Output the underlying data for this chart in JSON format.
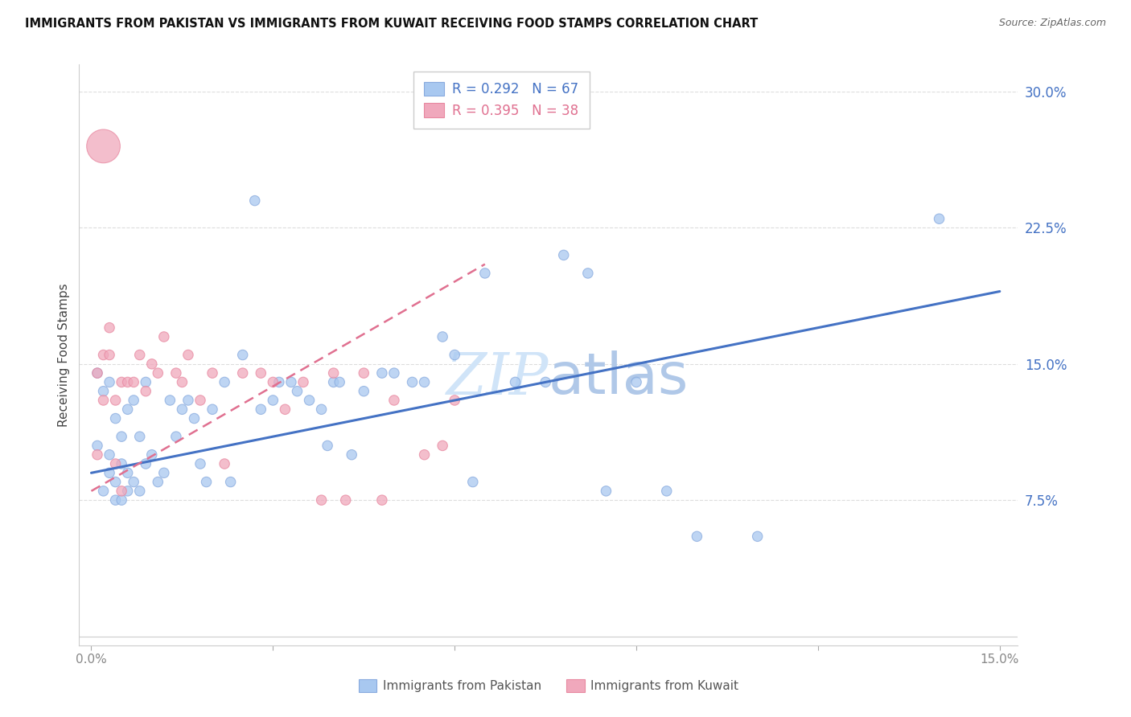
{
  "title": "IMMIGRANTS FROM PAKISTAN VS IMMIGRANTS FROM KUWAIT RECEIVING FOOD STAMPS CORRELATION CHART",
  "source": "Source: ZipAtlas.com",
  "ylabel": "Receiving Food Stamps",
  "pakistan_R": 0.292,
  "pakistan_N": 67,
  "kuwait_R": 0.395,
  "kuwait_N": 38,
  "pakistan_color": "#A8C8F0",
  "kuwait_color": "#F0A8BC",
  "pakistan_line_color": "#4472C4",
  "kuwait_line_color": "#E07090",
  "watermark_color": "#D0E4F8",
  "legend_pakistan": "Immigrants from Pakistan",
  "legend_kuwait": "Immigrants from Kuwait",
  "pakistan_scatter_x": [
    0.001,
    0.001,
    0.002,
    0.002,
    0.003,
    0.003,
    0.003,
    0.004,
    0.004,
    0.004,
    0.005,
    0.005,
    0.005,
    0.006,
    0.006,
    0.006,
    0.007,
    0.007,
    0.008,
    0.008,
    0.009,
    0.009,
    0.01,
    0.011,
    0.012,
    0.013,
    0.014,
    0.015,
    0.016,
    0.017,
    0.018,
    0.019,
    0.02,
    0.022,
    0.023,
    0.025,
    0.027,
    0.028,
    0.03,
    0.031,
    0.033,
    0.034,
    0.036,
    0.038,
    0.039,
    0.04,
    0.041,
    0.043,
    0.045,
    0.048,
    0.05,
    0.053,
    0.055,
    0.058,
    0.06,
    0.063,
    0.065,
    0.07,
    0.075,
    0.078,
    0.082,
    0.085,
    0.09,
    0.095,
    0.1,
    0.11,
    0.14
  ],
  "pakistan_scatter_y": [
    0.145,
    0.105,
    0.135,
    0.08,
    0.14,
    0.1,
    0.09,
    0.12,
    0.085,
    0.075,
    0.11,
    0.095,
    0.075,
    0.125,
    0.09,
    0.08,
    0.13,
    0.085,
    0.11,
    0.08,
    0.14,
    0.095,
    0.1,
    0.085,
    0.09,
    0.13,
    0.11,
    0.125,
    0.13,
    0.12,
    0.095,
    0.085,
    0.125,
    0.14,
    0.085,
    0.155,
    0.24,
    0.125,
    0.13,
    0.14,
    0.14,
    0.135,
    0.13,
    0.125,
    0.105,
    0.14,
    0.14,
    0.1,
    0.135,
    0.145,
    0.145,
    0.14,
    0.14,
    0.165,
    0.155,
    0.085,
    0.2,
    0.14,
    0.14,
    0.21,
    0.2,
    0.08,
    0.14,
    0.08,
    0.055,
    0.055,
    0.23
  ],
  "pakistan_scatter_size": [
    80,
    80,
    80,
    80,
    80,
    80,
    80,
    80,
    80,
    80,
    80,
    80,
    80,
    80,
    80,
    80,
    80,
    80,
    80,
    80,
    80,
    80,
    80,
    80,
    80,
    80,
    80,
    80,
    80,
    80,
    80,
    80,
    80,
    80,
    80,
    80,
    80,
    80,
    80,
    80,
    80,
    80,
    80,
    80,
    80,
    80,
    80,
    80,
    80,
    80,
    80,
    80,
    80,
    80,
    80,
    80,
    80,
    80,
    80,
    80,
    80,
    80,
    80,
    80,
    80,
    80,
    80
  ],
  "kuwait_scatter_x": [
    0.001,
    0.001,
    0.002,
    0.002,
    0.003,
    0.003,
    0.004,
    0.004,
    0.005,
    0.005,
    0.006,
    0.007,
    0.008,
    0.009,
    0.01,
    0.011,
    0.012,
    0.014,
    0.015,
    0.016,
    0.018,
    0.02,
    0.022,
    0.025,
    0.028,
    0.03,
    0.032,
    0.035,
    0.038,
    0.04,
    0.042,
    0.045,
    0.048,
    0.05,
    0.055,
    0.058,
    0.06,
    0.002
  ],
  "kuwait_scatter_y": [
    0.145,
    0.1,
    0.155,
    0.13,
    0.155,
    0.17,
    0.13,
    0.095,
    0.14,
    0.08,
    0.14,
    0.14,
    0.155,
    0.135,
    0.15,
    0.145,
    0.165,
    0.145,
    0.14,
    0.155,
    0.13,
    0.145,
    0.095,
    0.145,
    0.145,
    0.14,
    0.125,
    0.14,
    0.075,
    0.145,
    0.075,
    0.145,
    0.075,
    0.13,
    0.1,
    0.105,
    0.13,
    0.27
  ],
  "kuwait_scatter_size": [
    80,
    80,
    80,
    80,
    80,
    80,
    80,
    80,
    80,
    80,
    80,
    80,
    80,
    80,
    80,
    80,
    80,
    80,
    80,
    80,
    80,
    80,
    80,
    80,
    80,
    80,
    80,
    80,
    80,
    80,
    80,
    80,
    80,
    80,
    80,
    80,
    80,
    900
  ],
  "pak_line_x0": 0.0,
  "pak_line_y0": 0.09,
  "pak_line_x1": 0.15,
  "pak_line_y1": 0.19,
  "kuw_line_x0": 0.0,
  "kuw_line_y0": 0.08,
  "kuw_line_x1": 0.065,
  "kuw_line_y1": 0.205,
  "xlim_min": -0.002,
  "xlim_max": 0.153,
  "ylim_min": -0.005,
  "ylim_max": 0.315,
  "yticks": [
    0.0,
    0.075,
    0.15,
    0.225,
    0.3
  ],
  "ytick_labels": [
    "",
    "7.5%",
    "15.0%",
    "22.5%",
    "30.0%"
  ],
  "xtick_labels": [
    "0.0%",
    "",
    "",
    "",
    "",
    "15.0%"
  ],
  "xtick_vals": [
    0.0,
    0.03,
    0.06,
    0.09,
    0.12,
    0.15
  ],
  "grid_color": "#DDDDDD",
  "tick_color": "#4472C4",
  "xtick_color": "#888888"
}
